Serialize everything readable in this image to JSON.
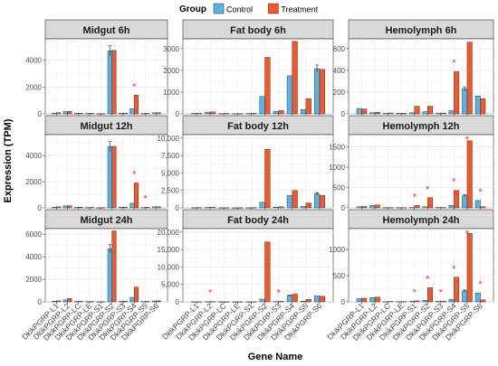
{
  "chart_data": {
    "type": "bar",
    "xlabel": "Gene Name",
    "ylabel": "Expression (TPM)",
    "legend": {
      "title": "Group",
      "position": "top",
      "items": [
        {
          "name": "Control",
          "color": "#56B4E9"
        },
        {
          "name": "Treatment",
          "color": "#F2582C"
        }
      ]
    },
    "categories": [
      "DkikPGRP-L1",
      "DkikPGRP-L2",
      "DkikPGRP-LC",
      "DkikPGRP-LE",
      "DkikPGRP-S1",
      "DkikPGRP-S2",
      "DkikPGRP-S3",
      "DkikPGRP-S4",
      "DkikPGRP-S5",
      "DkikPGRP-S6"
    ],
    "significance_marker": "*",
    "panels": [
      {
        "title": "Midgut 6h",
        "ylim": [
          0,
          5600
        ],
        "yticks": [
          0,
          2000,
          4000
        ],
        "ytick_labels": [
          "0",
          "2000",
          "4000"
        ],
        "series": [
          {
            "name": "Control",
            "values": [
              60,
              170,
              40,
              30,
              10,
              4700,
              50,
              400,
              30,
              80
            ]
          },
          {
            "name": "Treatment",
            "values": [
              80,
              180,
              50,
              40,
              15,
              4750,
              60,
              1400,
              35,
              90
            ]
          }
        ],
        "significant": [
          7
        ]
      },
      {
        "title": "Fat body 6h",
        "ylim": [
          0,
          3450
        ],
        "yticks": [
          0,
          1000,
          2000,
          3000
        ],
        "ytick_labels": [
          "0",
          "1000",
          "2000",
          "3000"
        ],
        "series": [
          {
            "name": "Control",
            "values": [
              20,
              80,
              15,
              10,
              20,
              800,
              120,
              1750,
              200,
              2080
            ]
          },
          {
            "name": "Treatment",
            "values": [
              25,
              90,
              20,
              15,
              25,
              2600,
              150,
              3330,
              700,
              2050
            ]
          }
        ],
        "significant": []
      },
      {
        "title": "Hemolymph 6h",
        "ylim": [
          0,
          690
        ],
        "yticks": [
          0,
          200,
          400,
          600
        ],
        "ytick_labels": [
          "0",
          "200",
          "400",
          "600"
        ],
        "series": [
          {
            "name": "Control",
            "values": [
              50,
              10,
              5,
              5,
              10,
              20,
              5,
              30,
              230,
              165
            ]
          },
          {
            "name": "Treatment",
            "values": [
              45,
              15,
              8,
              6,
              70,
              70,
              8,
              390,
              660,
              140
            ]
          }
        ],
        "significant": [
          7
        ]
      },
      {
        "title": "Midgut 12h",
        "ylim": [
          0,
          5600
        ],
        "yticks": [
          0,
          2000,
          4000
        ],
        "ytick_labels": [
          "0",
          "2000",
          "4000"
        ],
        "series": [
          {
            "name": "Control",
            "values": [
              60,
              150,
              40,
              30,
              10,
              4700,
              50,
              350,
              30,
              80
            ]
          },
          {
            "name": "Treatment",
            "values": [
              80,
              170,
              50,
              40,
              15,
              4700,
              60,
              1900,
              40,
              90
            ]
          }
        ],
        "significant": [
          7,
          8
        ]
      },
      {
        "title": "Fat body 12h",
        "ylim": [
          0,
          10500
        ],
        "yticks": [
          0,
          2500,
          5000,
          7500,
          10000
        ],
        "ytick_labels": [
          "0",
          "2,500",
          "5,000",
          "7,500",
          "10,000"
        ],
        "series": [
          {
            "name": "Control",
            "values": [
              20,
              60,
              15,
              10,
              20,
              800,
              100,
              1800,
              200,
              2000
            ]
          },
          {
            "name": "Treatment",
            "values": [
              25,
              80,
              20,
              15,
              25,
              8400,
              150,
              2500,
              700,
              1800
            ]
          }
        ],
        "significant": []
      },
      {
        "title": "Hemolymph 12h",
        "ylim": [
          0,
          1800
        ],
        "yticks": [
          0,
          500,
          1000,
          1500
        ],
        "ytick_labels": [
          "0",
          "500",
          "1000",
          "1500"
        ],
        "series": [
          {
            "name": "Control",
            "values": [
              30,
              60,
              5,
              5,
              10,
              30,
              10,
              60,
              300,
              180
            ]
          },
          {
            "name": "Treatment",
            "values": [
              35,
              70,
              8,
              6,
              60,
              250,
              10,
              430,
              1650,
              30
            ]
          }
        ],
        "significant": [
          4,
          5,
          7,
          8,
          9
        ]
      },
      {
        "title": "Midgut 24h",
        "ylim": [
          0,
          6500
        ],
        "yticks": [
          0,
          2000,
          4000,
          6000
        ],
        "ytick_labels": [
          "0",
          "2000",
          "4000",
          "6000"
        ],
        "series": [
          {
            "name": "Control",
            "values": [
              60,
              170,
              40,
              30,
              10,
              4700,
              50,
              400,
              30,
              80
            ]
          },
          {
            "name": "Treatment",
            "values": [
              90,
              300,
              50,
              40,
              15,
              6300,
              60,
              1300,
              40,
              90
            ]
          }
        ],
        "significant": []
      },
      {
        "title": "Fat body 24h",
        "ylim": [
          0,
          21000
        ],
        "yticks": [
          0,
          5000,
          10000,
          15000,
          20000
        ],
        "ytick_labels": [
          "0",
          "5,000",
          "10,000",
          "15,000",
          "20,000"
        ],
        "series": [
          {
            "name": "Control",
            "values": [
              20,
              60,
              15,
              10,
              20,
              800,
              100,
              1800,
              200,
              1700
            ]
          },
          {
            "name": "Treatment",
            "values": [
              25,
              80,
              20,
              15,
              25,
              17200,
              150,
              2200,
              700,
              1600
            ]
          }
        ],
        "significant": [
          1,
          6
        ]
      },
      {
        "title": "Hemolymph 24h",
        "ylim": [
          0,
          1400
        ],
        "yticks": [
          0,
          500,
          1000
        ],
        "ytick_labels": [
          "0",
          "500",
          "1000"
        ],
        "series": [
          {
            "name": "Control",
            "values": [
              60,
              80,
              5,
              5,
              10,
              30,
              10,
              50,
              210,
              170
            ]
          },
          {
            "name": "Treatment",
            "values": [
              70,
              90,
              8,
              6,
              20,
              270,
              15,
              470,
              1310,
              40
            ]
          }
        ],
        "significant": [
          4,
          5,
          6,
          7,
          8,
          9
        ]
      }
    ]
  }
}
